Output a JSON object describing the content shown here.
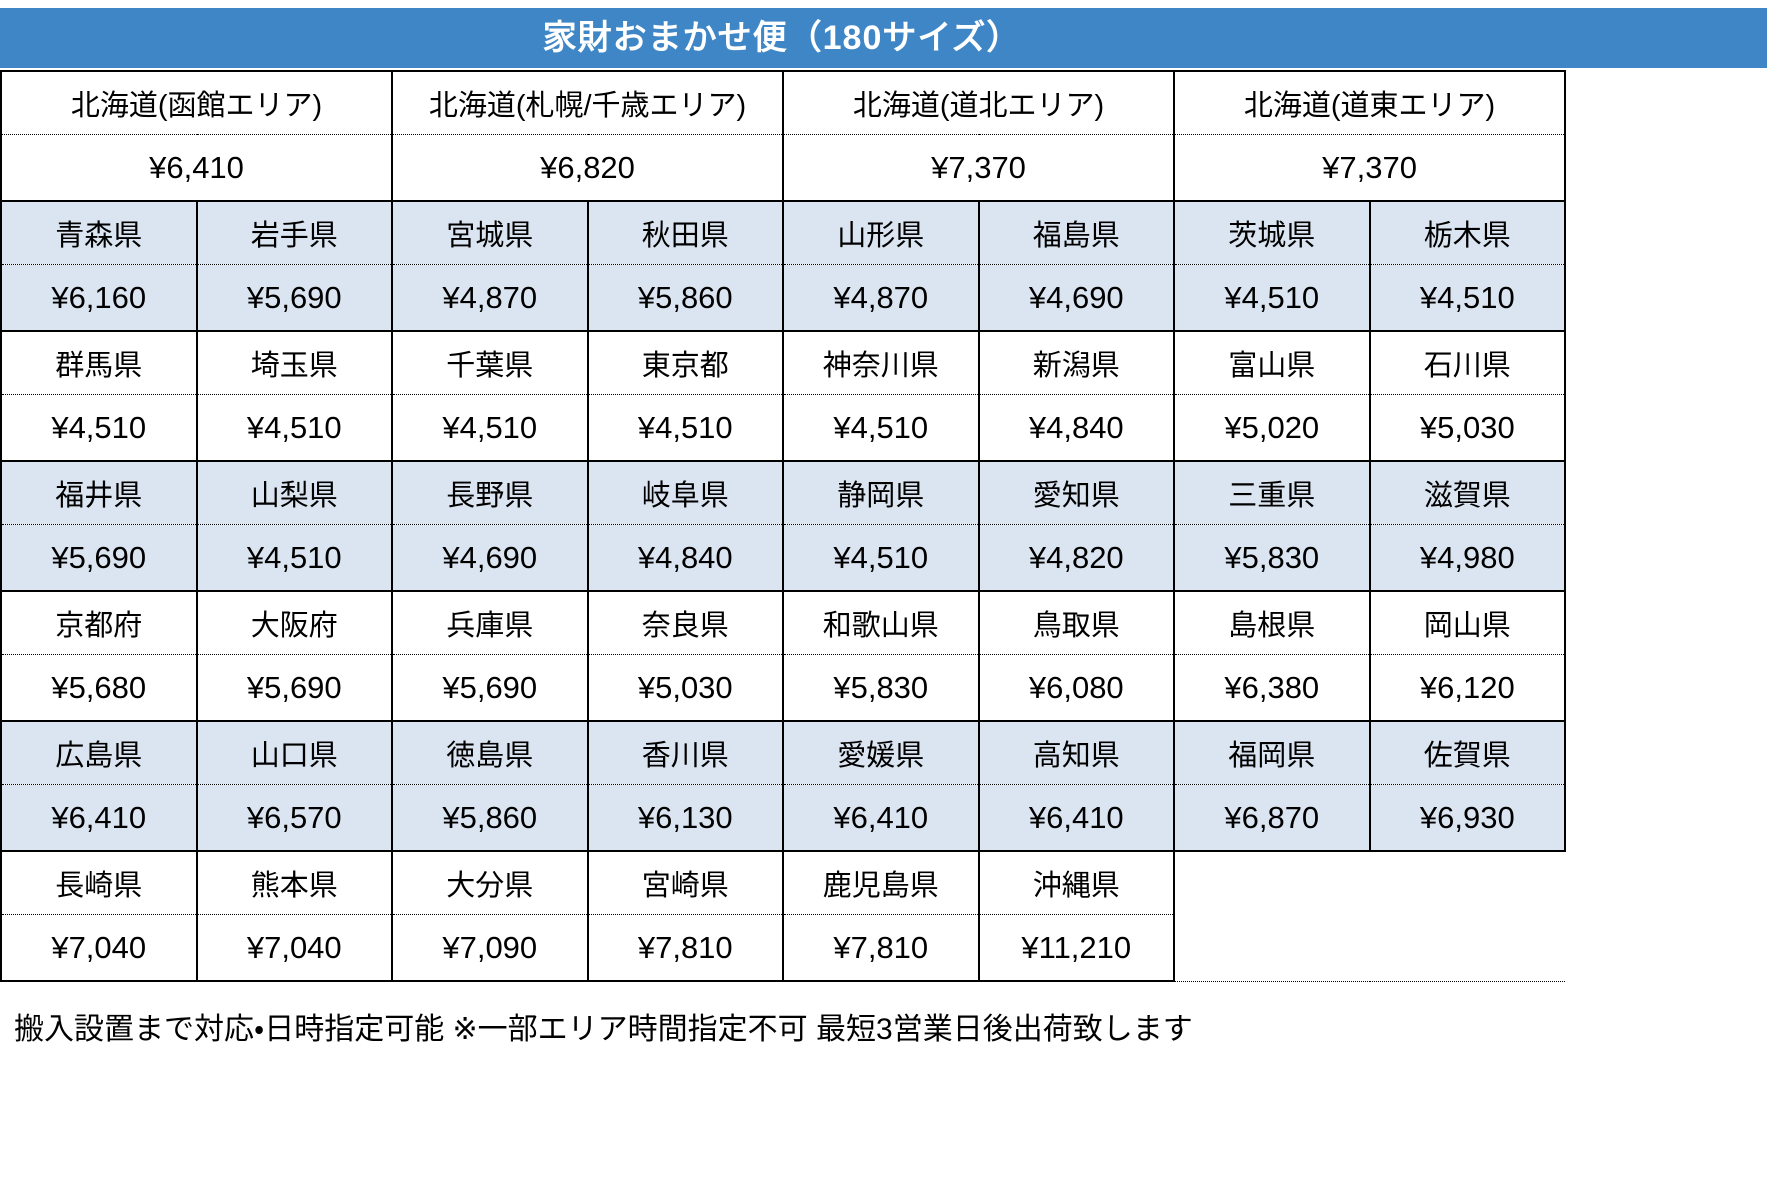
{
  "title": "家財おまかせ便（180サイズ）",
  "colors": {
    "header_bg": "#3E86C6",
    "shaded_row_bg": "#DBE5F1"
  },
  "hokkaido": [
    {
      "area": "北海道(函館エリア)",
      "price": "¥6,410"
    },
    {
      "area": "北海道(札幌/千歳エリア)",
      "price": "¥6,820"
    },
    {
      "area": "北海道(道北エリア)",
      "price": "¥7,370"
    },
    {
      "area": "北海道(道東エリア)",
      "price": "¥7,370"
    }
  ],
  "groups": [
    {
      "shaded": true,
      "cells": [
        {
          "name": "青森県",
          "price": "¥6,160"
        },
        {
          "name": "岩手県",
          "price": "¥5,690"
        },
        {
          "name": "宮城県",
          "price": "¥4,870"
        },
        {
          "name": "秋田県",
          "price": "¥5,860"
        },
        {
          "name": "山形県",
          "price": "¥4,870"
        },
        {
          "name": "福島県",
          "price": "¥4,690"
        },
        {
          "name": "茨城県",
          "price": "¥4,510"
        },
        {
          "name": "栃木県",
          "price": "¥4,510"
        }
      ]
    },
    {
      "shaded": false,
      "cells": [
        {
          "name": "群馬県",
          "price": "¥4,510"
        },
        {
          "name": "埼玉県",
          "price": "¥4,510"
        },
        {
          "name": "千葉県",
          "price": "¥4,510"
        },
        {
          "name": "東京都",
          "price": "¥4,510"
        },
        {
          "name": "神奈川県",
          "price": "¥4,510"
        },
        {
          "name": "新潟県",
          "price": "¥4,840"
        },
        {
          "name": "富山県",
          "price": "¥5,020"
        },
        {
          "name": "石川県",
          "price": "¥5,030"
        }
      ]
    },
    {
      "shaded": true,
      "cells": [
        {
          "name": "福井県",
          "price": "¥5,690"
        },
        {
          "name": "山梨県",
          "price": "¥4,510"
        },
        {
          "name": "長野県",
          "price": "¥4,690"
        },
        {
          "name": "岐阜県",
          "price": "¥4,840"
        },
        {
          "name": "静岡県",
          "price": "¥4,510"
        },
        {
          "name": "愛知県",
          "price": "¥4,820"
        },
        {
          "name": "三重県",
          "price": "¥5,830"
        },
        {
          "name": "滋賀県",
          "price": "¥4,980"
        }
      ]
    },
    {
      "shaded": false,
      "cells": [
        {
          "name": "京都府",
          "price": "¥5,680"
        },
        {
          "name": "大阪府",
          "price": "¥5,690"
        },
        {
          "name": "兵庫県",
          "price": "¥5,690"
        },
        {
          "name": "奈良県",
          "price": "¥5,030"
        },
        {
          "name": "和歌山県",
          "price": "¥5,830"
        },
        {
          "name": "鳥取県",
          "price": "¥6,080"
        },
        {
          "name": "島根県",
          "price": "¥6,380"
        },
        {
          "name": "岡山県",
          "price": "¥6,120"
        }
      ]
    },
    {
      "shaded": true,
      "cells": [
        {
          "name": "広島県",
          "price": "¥6,410"
        },
        {
          "name": "山口県",
          "price": "¥6,570"
        },
        {
          "name": "徳島県",
          "price": "¥5,860"
        },
        {
          "name": "香川県",
          "price": "¥6,130"
        },
        {
          "name": "愛媛県",
          "price": "¥6,410"
        },
        {
          "name": "高知県",
          "price": "¥6,410"
        },
        {
          "name": "福岡県",
          "price": "¥6,870"
        },
        {
          "name": "佐賀県",
          "price": "¥6,930"
        }
      ]
    },
    {
      "shaded": false,
      "cells": [
        {
          "name": "長崎県",
          "price": "¥7,040"
        },
        {
          "name": "熊本県",
          "price": "¥7,040"
        },
        {
          "name": "大分県",
          "price": "¥7,090"
        },
        {
          "name": "宮崎県",
          "price": "¥7,810"
        },
        {
          "name": "鹿児島県",
          "price": "¥7,810"
        },
        {
          "name": "沖縄県",
          "price": "¥11,210"
        }
      ]
    }
  ],
  "footer_note": "搬入設置まで対応・日時指定可能 ※一部エリア時間指定不可 最短3営業日後出荷致します"
}
